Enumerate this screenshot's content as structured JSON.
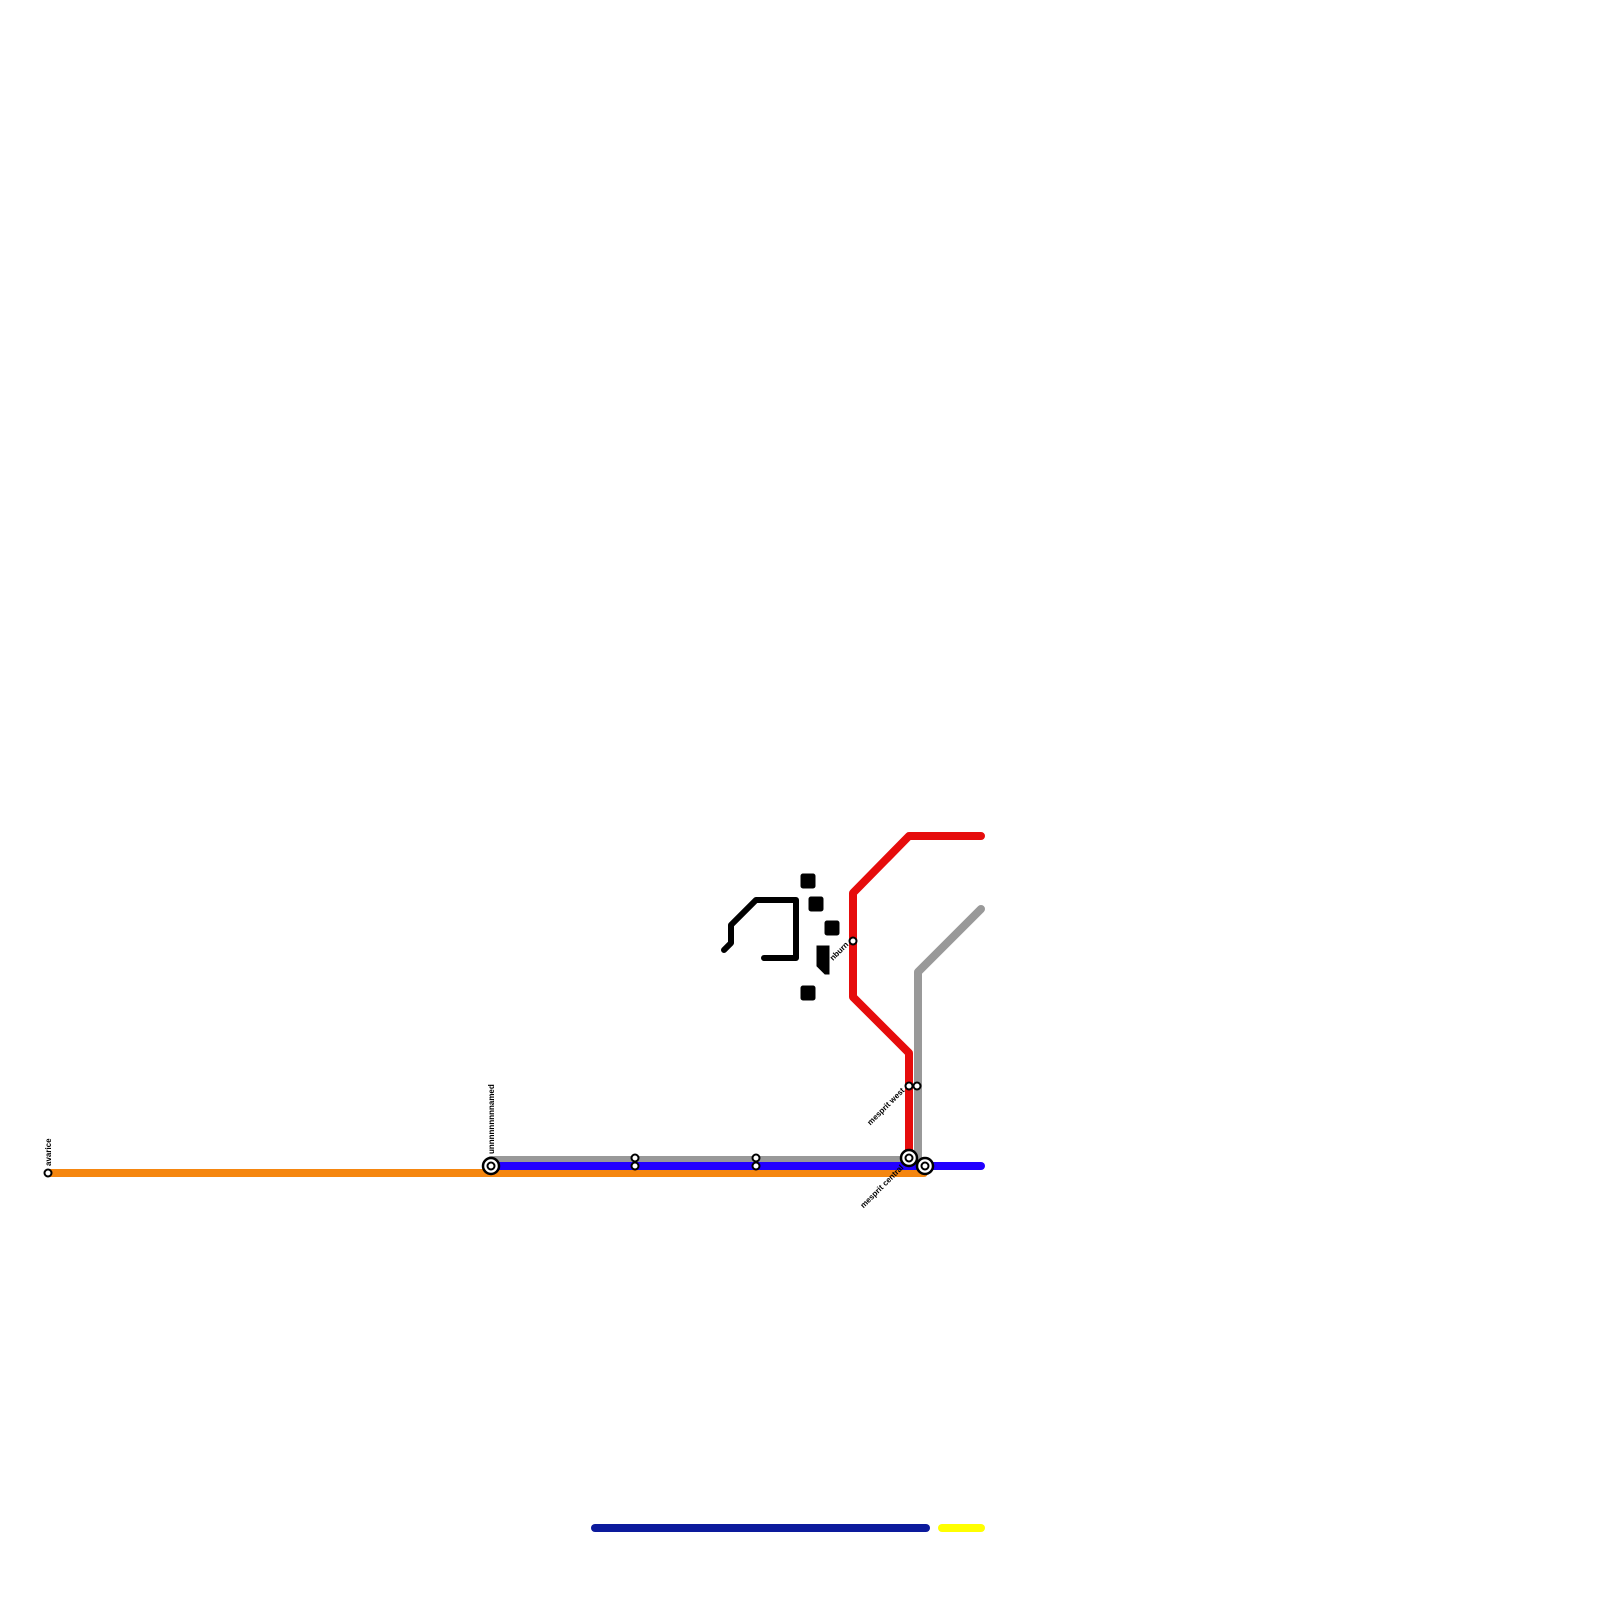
{
  "stations": {
    "avarice": "avarice",
    "unnamed": "unnnnnnnnnamed",
    "mesprit_west": "mesprit west",
    "mesprit_central": "mesprit central",
    "turnburn_partial": "nburn"
  },
  "line_colors": {
    "orange": "#f5860f",
    "grey": "#999999",
    "blue": "#2200ff",
    "red": "#e60c0c",
    "black": "#000000",
    "navy": "#0c1a9c",
    "yellow": "#ffff00"
  }
}
